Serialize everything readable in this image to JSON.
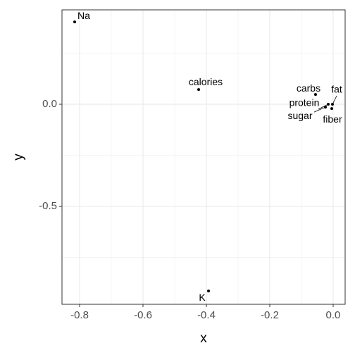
{
  "chart_data": {
    "type": "scatter",
    "x_label": "x",
    "y_label": "y",
    "labels": [
      "Na",
      "calories",
      "K",
      "carbs",
      "fat",
      "fiber",
      "protein",
      "sugar"
    ],
    "x": [
      -0.8156,
      -0.4244,
      -0.3933,
      -0.0556,
      -0.0022,
      -0.0044,
      -0.0156,
      -0.0244
    ],
    "values": [
      0.403,
      0.072,
      -0.914,
      0.048,
      0.0,
      -0.021,
      0.0,
      -0.014
    ],
    "color": "#000000",
    "xlim": [
      -0.8556,
      0.0378
    ],
    "ylim": [
      -0.979,
      0.462
    ],
    "xticks": [
      {
        "value": -0.8,
        "label": "-0.8"
      },
      {
        "value": -0.6,
        "label": "-0.6"
      },
      {
        "value": -0.4,
        "label": "-0.4"
      },
      {
        "value": -0.2,
        "label": "-0.2"
      },
      {
        "value": 0,
        "label": "0.0"
      }
    ],
    "yticks": [
      {
        "value": -0.5,
        "label": "-0.5"
      },
      {
        "value": 0,
        "label": "0.0"
      }
    ],
    "grid": true
  }
}
